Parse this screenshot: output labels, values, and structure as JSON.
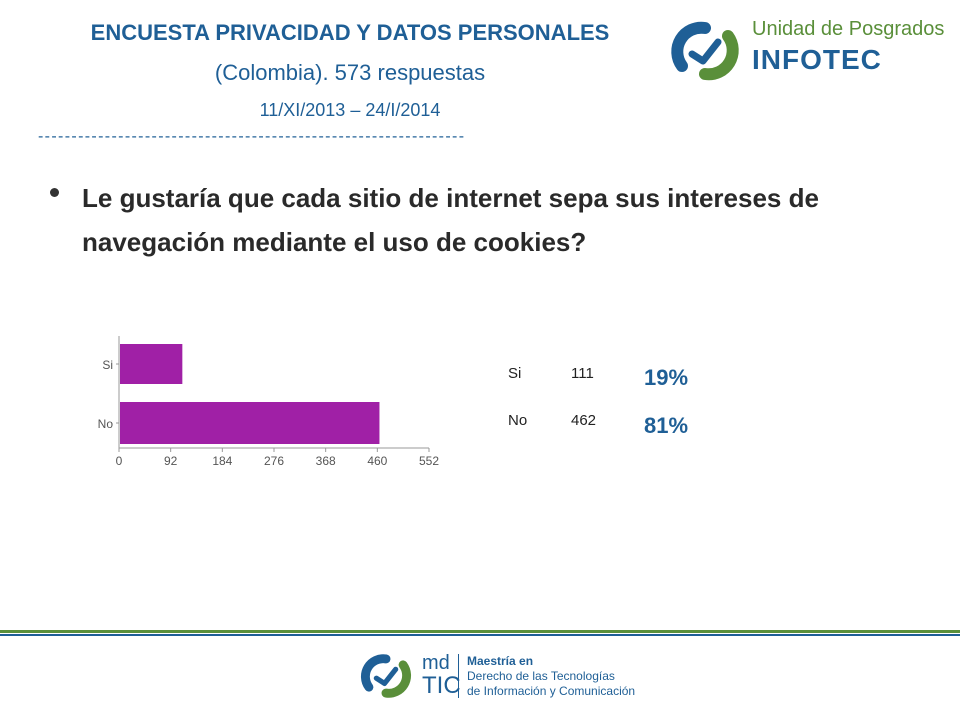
{
  "header": {
    "title": "ENCUESTA PRIVACIDAD Y DATOS PERSONALES",
    "subtitle": "(Colombia). 573 respuestas",
    "dates": "11/XI/2013 – 24/I/2014",
    "divider": "----------------------------------------------------------------"
  },
  "question": "Le gustaría que cada sitio de internet sepa sus intereses de navegación mediante el uso de cookies?",
  "logos": {
    "infotec_text": "Unidad de Posgrados",
    "infotec_brand": "INFOTEC",
    "footer_md": "md",
    "footer_tic": "TIC",
    "footer_line1": "Maestría en",
    "footer_line2": "Derecho de las Tecnologías",
    "footer_line3": "de Información y Comunicación"
  },
  "results": {
    "rows": [
      {
        "label": "Si",
        "count": "111",
        "pct": "19%"
      },
      {
        "label": "No",
        "count": "462",
        "pct": "81%"
      }
    ]
  },
  "colors": {
    "bar": "#a020a6",
    "title": "#1f5f96",
    "green": "#5a8f3a"
  },
  "chart_data": {
    "type": "bar",
    "orientation": "horizontal",
    "categories": [
      "Si",
      "No"
    ],
    "values": [
      111,
      462
    ],
    "xlim": [
      0,
      552
    ],
    "xticks": [
      "0",
      "92",
      "184",
      "276",
      "368",
      "460",
      "552"
    ],
    "grid": false
  }
}
